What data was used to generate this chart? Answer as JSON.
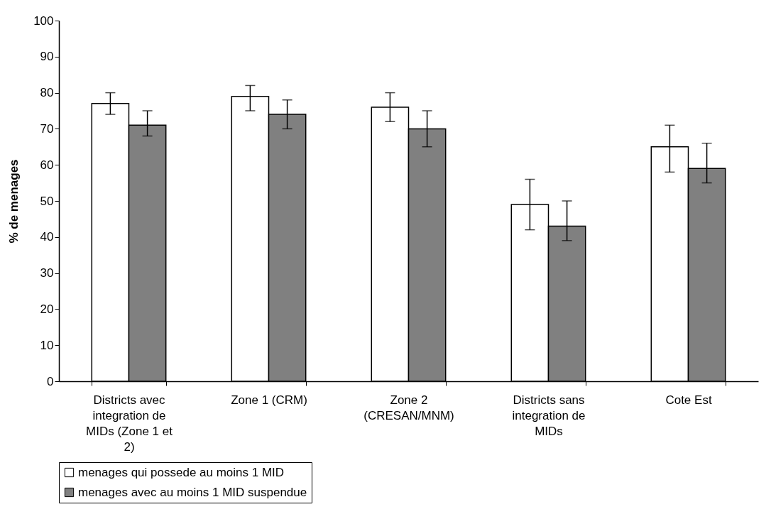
{
  "chart_data": {
    "type": "bar",
    "ylabel": "% de menages",
    "categories": [
      "Districts avec integration de MIDs (Zone 1 et 2)",
      "Zone 1 (CRM)",
      "Zone 2 (CRESAN/MNM)",
      "Districts sans integration de MIDs",
      "Cote Est"
    ],
    "series": [
      {
        "name": "menages qui possede au moins 1 MID",
        "color": "#ffffff",
        "values": [
          77,
          79,
          76,
          49,
          65
        ],
        "errors": [
          [
            74,
            80
          ],
          [
            75,
            82
          ],
          [
            72,
            80
          ],
          [
            42,
            56
          ],
          [
            58,
            71
          ]
        ]
      },
      {
        "name": "menages avec au moins 1 MID suspendue",
        "color": "#808080",
        "values": [
          71,
          74,
          70,
          43,
          59
        ],
        "errors": [
          [
            68,
            75
          ],
          [
            70,
            78
          ],
          [
            65,
            75
          ],
          [
            39,
            50
          ],
          [
            55,
            66
          ]
        ]
      }
    ],
    "ylim": [
      0,
      100
    ],
    "yticks": [
      0,
      10,
      20,
      30,
      40,
      50,
      60,
      70,
      80,
      90,
      100
    ],
    "grid": false,
    "legend": "bottom"
  }
}
